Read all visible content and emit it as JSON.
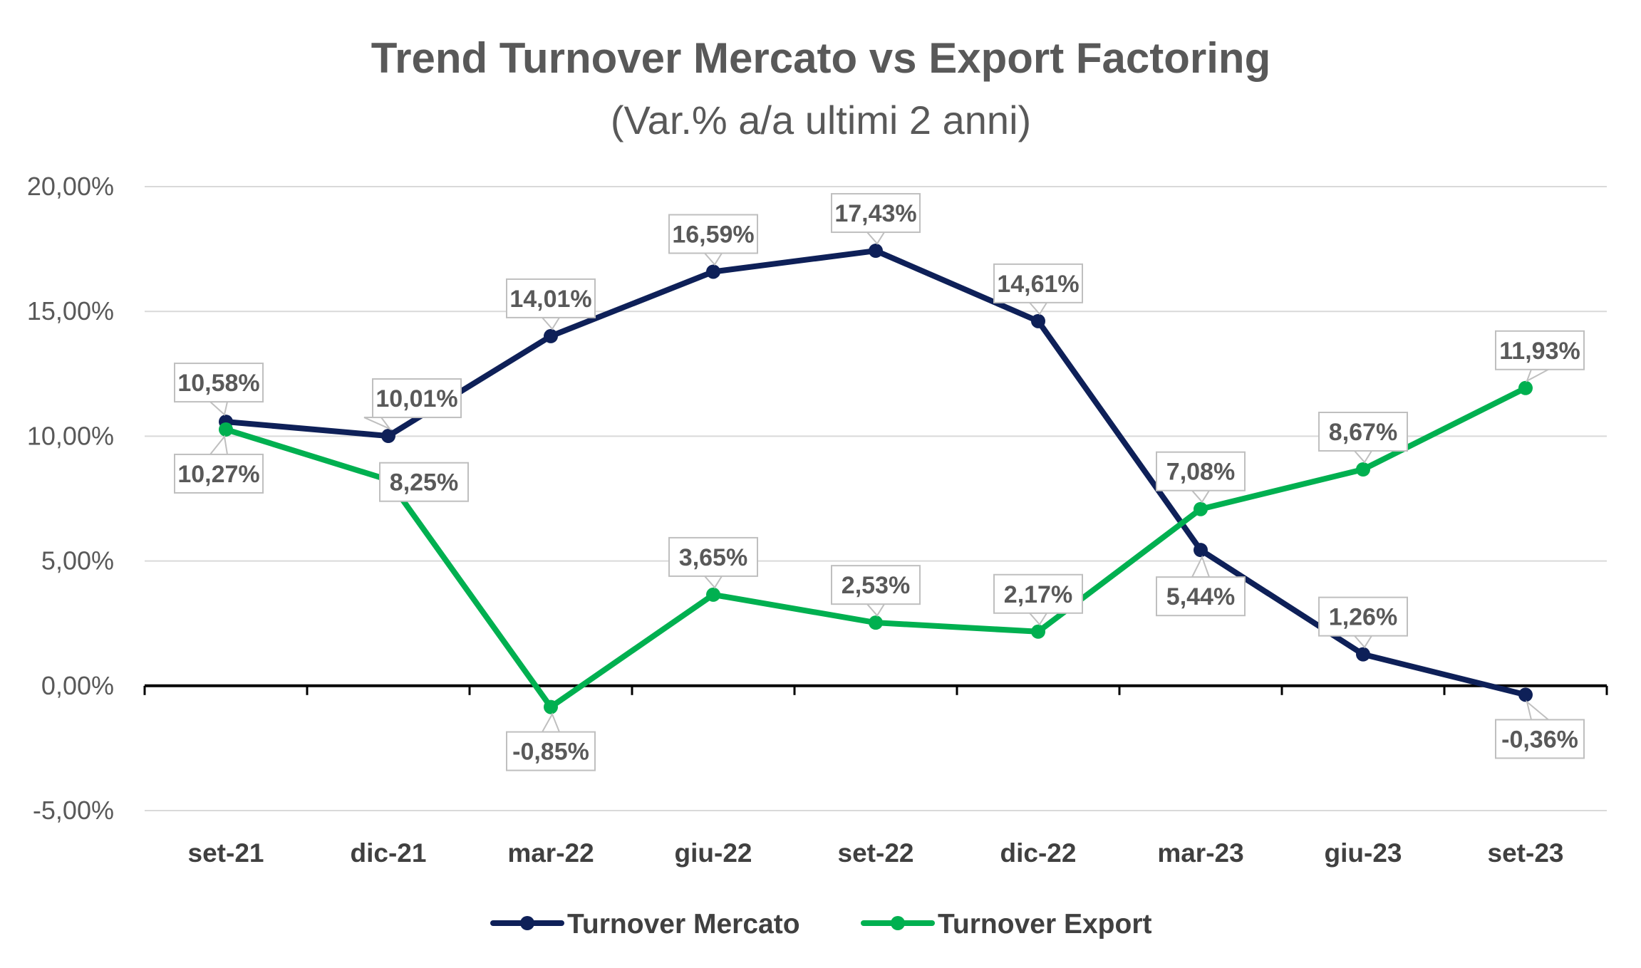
{
  "chart_data": {
    "type": "line",
    "title": "Trend Turnover Mercato vs Export Factoring",
    "subtitle": "(Var.% a/a ultimi 2 anni)",
    "categories": [
      "set-21",
      "dic-21",
      "mar-22",
      "giu-22",
      "set-22",
      "dic-22",
      "mar-23",
      "giu-23",
      "set-23"
    ],
    "y_ticks": [
      "-5,00%",
      "0,00%",
      "5,00%",
      "10,00%",
      "15,00%",
      "20,00%"
    ],
    "ylim": [
      -5,
      20
    ],
    "grid": true,
    "legend_position": "bottom",
    "series": [
      {
        "name": "Turnover Mercato",
        "color": "#0E2058",
        "values": [
          10.58,
          10.01,
          14.01,
          16.59,
          17.43,
          14.61,
          5.44,
          1.26,
          -0.36
        ],
        "labels": [
          "10,58%",
          "10,01%",
          "14,01%",
          "16,59%",
          "17,43%",
          "14,61%",
          "5,44%",
          "1,26%",
          "-0,36%"
        ]
      },
      {
        "name": "Turnover Export",
        "color": "#00B050",
        "values": [
          10.27,
          8.25,
          -0.85,
          3.65,
          2.53,
          2.17,
          7.08,
          8.67,
          11.93
        ],
        "labels": [
          "10,27%",
          "8,25%",
          "-0,85%",
          "3,65%",
          "2,53%",
          "2,17%",
          "7,08%",
          "8,67%",
          "11,93%"
        ]
      }
    ]
  }
}
